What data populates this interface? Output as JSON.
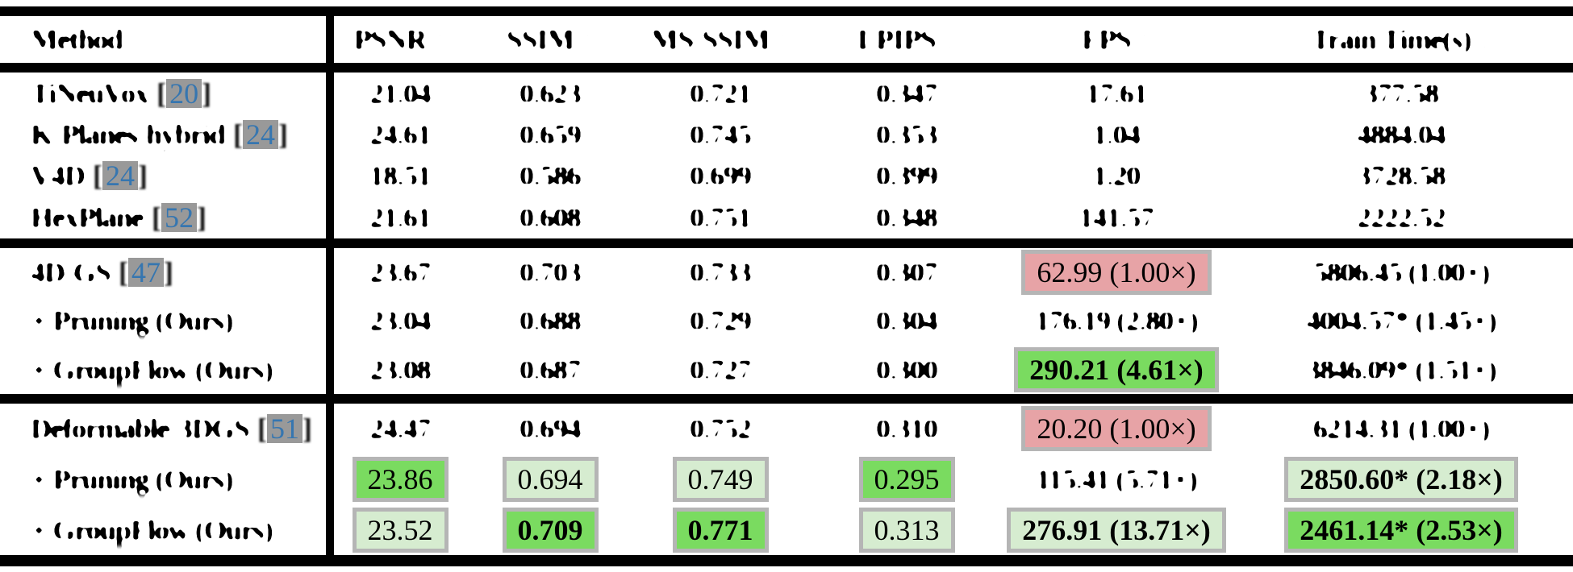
{
  "colors": {
    "highlight_pink": "#e7a3a6",
    "highlight_green": "#7adb60",
    "highlight_light_green": "#d6ecd0",
    "citation_blue": "#3676b0",
    "citation_chip_gray": "#999999",
    "box_border_gray": "#b5b5b5",
    "rule_black": "#000000"
  },
  "table": {
    "columns": {
      "method": "Method",
      "psnr": "PSNR ↑",
      "ssim": "SSIM ↑",
      "msssim": "MS-SSIM ↑",
      "lpips": "LPIPS ↓",
      "fps": "FPS ↑",
      "train": "Train Time(s) ↓"
    },
    "groups": [
      {
        "rows": [
          {
            "method": "TiNeuVox",
            "cite_l": "[",
            "cite_num": "20",
            "cite_r": "]",
            "cells": [
              {
                "text": "21.04",
                "cls": "deg"
              },
              {
                "text": "0.623",
                "cls": "deg"
              },
              {
                "text": "0.721",
                "cls": "deg"
              },
              {
                "text": "0.347",
                "cls": "deg"
              },
              {
                "text": "17.61",
                "cls": "deg"
              },
              {
                "text": "377.58",
                "cls": "deg"
              }
            ]
          },
          {
            "method": "K-Planes-hybrid",
            "cite_l": "[",
            "cite_num": "24",
            "cite_r": "]",
            "cells": [
              {
                "text": "24.61",
                "cls": "deg"
              },
              {
                "text": "0.659",
                "cls": "deg"
              },
              {
                "text": "0.745",
                "cls": "deg"
              },
              {
                "text": "0.353",
                "cls": "deg"
              },
              {
                "text": "1.04",
                "cls": "deg"
              },
              {
                "text": "4884.04",
                "cls": "deg"
              }
            ]
          },
          {
            "method": "V4D",
            "cite_l": "[",
            "cite_num": "24",
            "cite_r": "]",
            "cells": [
              {
                "text": "18.51",
                "cls": "deg"
              },
              {
                "text": "0.586",
                "cls": "deg"
              },
              {
                "text": "0.699",
                "cls": "deg"
              },
              {
                "text": "0.399",
                "cls": "deg"
              },
              {
                "text": "1.20",
                "cls": "deg"
              },
              {
                "text": "3728.58",
                "cls": "deg"
              }
            ]
          },
          {
            "method": "HexPlane",
            "cite_l": "[",
            "cite_num": "52",
            "cite_r": "]",
            "cells": [
              {
                "text": "21.61",
                "cls": "deg"
              },
              {
                "text": "0.608",
                "cls": "deg"
              },
              {
                "text": "0.751",
                "cls": "deg"
              },
              {
                "text": "0.348",
                "cls": "deg"
              },
              {
                "text": "141.57",
                "cls": "deg"
              },
              {
                "text": "2222.52",
                "cls": "deg"
              }
            ]
          }
        ]
      },
      {
        "rows": [
          {
            "method": "4D-GS",
            "cite_l": "[",
            "cite_num": "47",
            "cite_r": "]",
            "cells": [
              {
                "text": "23.67",
                "cls": "deg"
              },
              {
                "text": "0.703",
                "cls": "deg"
              },
              {
                "text": "0.733",
                "cls": "deg"
              },
              {
                "text": "0.307",
                "cls": "deg"
              },
              {
                "text": "62.99 (1.00×)",
                "cls": "box pink"
              },
              {
                "text": "5806.45 (1.00×)",
                "cls": "deg"
              }
            ]
          },
          {
            "method": "+ Pruning (Ours)",
            "cite_l": "",
            "cite_num": "",
            "cite_r": "",
            "cells": [
              {
                "text": "23.04",
                "cls": "deg"
              },
              {
                "text": "0.688",
                "cls": "deg"
              },
              {
                "text": "0.729",
                "cls": "deg"
              },
              {
                "text": "0.304",
                "cls": "deg"
              },
              {
                "text": "176.19 (2.80×)",
                "cls": "deg"
              },
              {
                "text": "4004.57* (1.45×)",
                "cls": "deg"
              }
            ]
          },
          {
            "method": "+ GroupFlow (Ours)",
            "cite_l": "",
            "cite_num": "",
            "cite_r": "",
            "cells": [
              {
                "text": "23.08",
                "cls": "deg"
              },
              {
                "text": "0.687",
                "cls": "deg"
              },
              {
                "text": "0.727",
                "cls": "deg"
              },
              {
                "text": "0.300",
                "cls": "deg"
              },
              {
                "text": "290.21 (4.61×)",
                "cls": "box green bold"
              },
              {
                "text": "3846.09* (1.51×)",
                "cls": "deg"
              }
            ]
          }
        ]
      },
      {
        "rows": [
          {
            "method": "Deformable-3DGS",
            "cite_l": "[",
            "cite_num": "51",
            "cite_r": "]",
            "cells": [
              {
                "text": "24.47",
                "cls": "deg"
              },
              {
                "text": "0.694",
                "cls": "deg"
              },
              {
                "text": "0.752",
                "cls": "deg"
              },
              {
                "text": "0.310",
                "cls": "deg"
              },
              {
                "text": "20.20 (1.00×)",
                "cls": "box pink"
              },
              {
                "text": "6214.31 (1.00×)",
                "cls": "deg"
              }
            ]
          },
          {
            "method": "+ Pruning (Ours)",
            "cite_l": "",
            "cite_num": "",
            "cite_r": "",
            "cells": [
              {
                "text": "23.86",
                "cls": "box green"
              },
              {
                "text": "0.694",
                "cls": "box lgreen"
              },
              {
                "text": "0.749",
                "cls": "box lgreen"
              },
              {
                "text": "0.295",
                "cls": "box green"
              },
              {
                "text": "115.41 (5.71×)",
                "cls": "deg"
              },
              {
                "text": "2850.60* (2.18×)",
                "cls": "box lgreen bold"
              }
            ]
          },
          {
            "method": "+ GroupFlow (Ours)",
            "cite_l": "",
            "cite_num": "",
            "cite_r": "",
            "cells": [
              {
                "text": "23.52",
                "cls": "box lgreen"
              },
              {
                "text": "0.709",
                "cls": "box green bold"
              },
              {
                "text": "0.771",
                "cls": "box green bold"
              },
              {
                "text": "0.313",
                "cls": "box lgreen"
              },
              {
                "text": "276.91 (13.71×)",
                "cls": "box lgreen bold"
              },
              {
                "text": "2461.14* (2.53×)",
                "cls": "box green bold"
              }
            ]
          }
        ]
      }
    ]
  }
}
